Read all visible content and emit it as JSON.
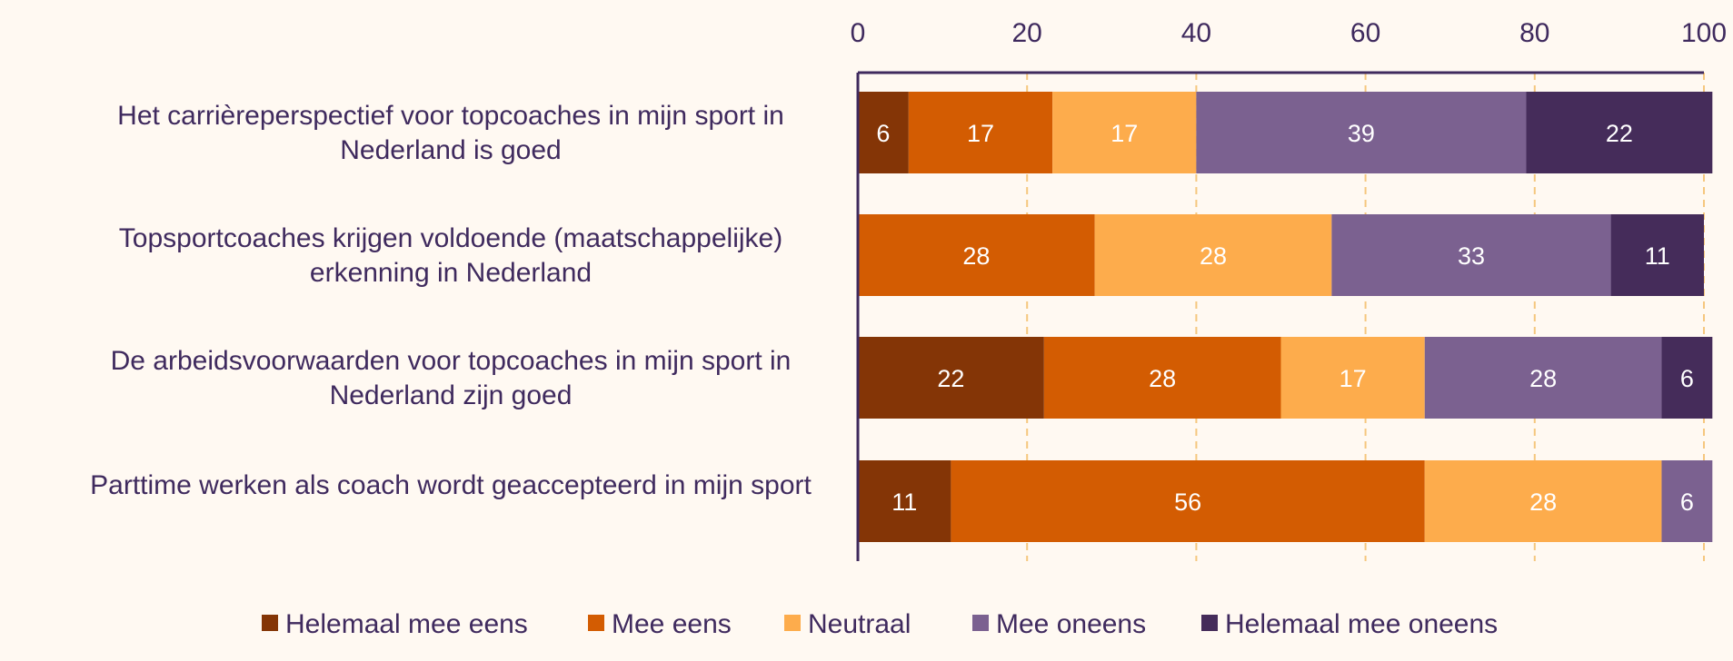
{
  "chart_data": {
    "type": "bar",
    "orientation": "horizontal",
    "stacked": true,
    "categories": [
      [
        "Het carrièreperspectief voor topcoaches in mijn sport in",
        "Nederland is goed"
      ],
      [
        "Topsportcoaches krijgen voldoende (maatschappelijke)",
        "erkenning in Nederland"
      ],
      [
        "De arbeidsvoorwaarden voor topcoaches in mijn sport in",
        "Nederland zijn goed"
      ],
      [
        "Parttime werken als coach wordt geaccepteerd in mijn sport"
      ]
    ],
    "series": [
      {
        "name": "Helemaal mee eens",
        "color": "#843506",
        "values": [
          6,
          0,
          22,
          11
        ]
      },
      {
        "name": "Mee eens",
        "color": "#d35c02",
        "values": [
          17,
          28,
          28,
          56
        ]
      },
      {
        "name": "Neutraal",
        "color": "#fdac4c",
        "values": [
          17,
          28,
          17,
          28
        ]
      },
      {
        "name": "Mee oneens",
        "color": "#7b6190",
        "values": [
          39,
          33,
          28,
          6
        ]
      },
      {
        "name": "Helemaal mee oneens",
        "color": "#452c5a",
        "values": [
          22,
          11,
          6,
          0
        ]
      }
    ],
    "xlim": [
      0,
      100
    ],
    "xticks": [
      0,
      20,
      40,
      60,
      80,
      100
    ],
    "xaxis_position": "top",
    "grid": true,
    "grid_color": "#f5c77e",
    "axis_color": "#3f2a5e",
    "text_color": "#3f2a5e",
    "legend_position": "bottom"
  }
}
